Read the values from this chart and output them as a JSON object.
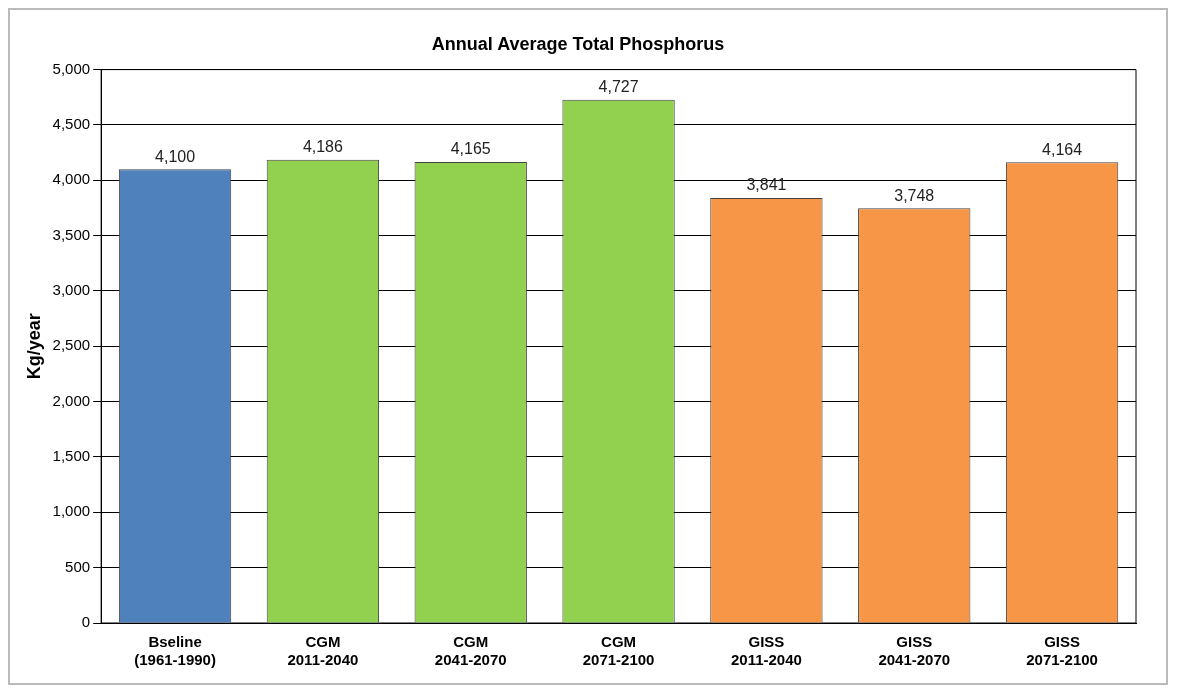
{
  "chart_data": {
    "type": "bar",
    "title": "Annual Average Total Phosphorus",
    "ylabel": "Kg/year",
    "categories": [
      "Bseline\n(1961-1990)",
      "CGM\n2011-2040",
      "CGM\n2041-2070",
      "CGM\n2071-2100",
      "GISS\n2011-2040",
      "GISS\n2041-2070",
      "GISS\n2071-2100"
    ],
    "values": [
      4100,
      4186,
      4165,
      4727,
      3841,
      3748,
      4164
    ],
    "colors": [
      "#4f81bd",
      "#92d050",
      "#92d050",
      "#92d050",
      "#f79646",
      "#f79646",
      "#f79646"
    ],
    "value_labels": [
      "4,100",
      "4,186",
      "4,165",
      "4,727",
      "3,841",
      "3,748",
      "4,164"
    ],
    "ylim": [
      0,
      5000
    ],
    "yticks": [
      {
        "value": 0,
        "label": "0"
      },
      {
        "value": 500,
        "label": "500"
      },
      {
        "value": 1000,
        "label": "1,000"
      },
      {
        "value": 1500,
        "label": "1,500"
      },
      {
        "value": 2000,
        "label": "2,000"
      },
      {
        "value": 2500,
        "label": "2,500"
      },
      {
        "value": 3000,
        "label": "3,000"
      },
      {
        "value": 3500,
        "label": "3,500"
      },
      {
        "value": 4000,
        "label": "4,000"
      },
      {
        "value": 4500,
        "label": "4,500"
      },
      {
        "value": 5000,
        "label": "5,000"
      }
    ],
    "grid": "y",
    "legend": false
  }
}
